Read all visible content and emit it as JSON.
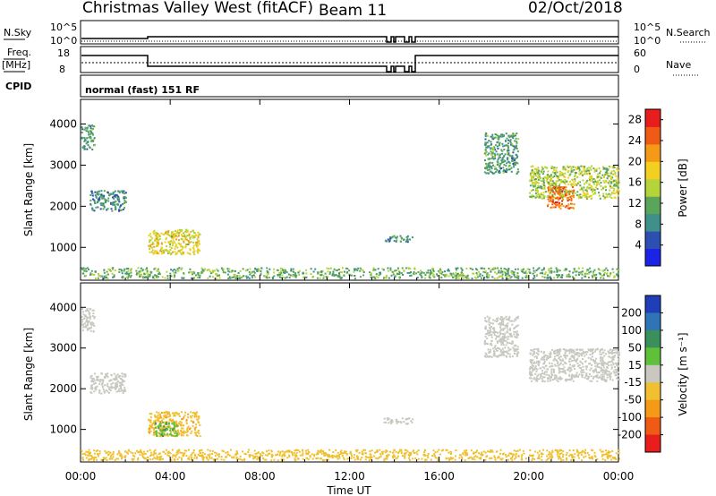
{
  "header": {
    "title": "Christmas Valley West (fitACF)",
    "beam": "Beam 11",
    "date": "02/Oct/2018"
  },
  "summary_panel": {
    "nsky_label": "N.Sky",
    "nsky_ticks": [
      "10^5",
      "10^0"
    ],
    "nsearch_label": "N.Search",
    "nsearch_ticks": [
      "10^5",
      "10^0"
    ],
    "freq_label": "Freq.",
    "freq_unit": "[MHz]",
    "freq_ticks": [
      "18",
      "8"
    ],
    "nave_label": "Nave",
    "nave_ticks": [
      "60",
      "0"
    ],
    "cpid_label": "CPID",
    "cpid_value": "normal (fast) 151 RF"
  },
  "colors": {
    "power_scale": [
      "#1b23e6",
      "#2b4fb2",
      "#3f8f8a",
      "#5aa55a",
      "#b5d43a",
      "#f2cf20",
      "#f59a16",
      "#ef5a14",
      "#e81d1d"
    ],
    "velocity_scale": [
      "#1f3fb8",
      "#2f74b5",
      "#3a8f5a",
      "#60c03a",
      "#c8c8c0",
      "#f0c030",
      "#f59a16",
      "#ef5a14",
      "#e81d1d"
    ]
  },
  "chart_data": [
    {
      "type": "heatmap",
      "name": "power",
      "xlabel": "Time UT",
      "ylabel": "Slant Range [km]",
      "xlim": [
        0,
        24
      ],
      "ylim": [
        200,
        4600
      ],
      "x_ticks": [
        "00:00",
        "04:00",
        "08:00",
        "12:00",
        "16:00",
        "20:00",
        "00:00"
      ],
      "y_ticks": [
        1000,
        2000,
        3000,
        4000
      ],
      "colorbar": {
        "label": "Power [dB]",
        "ticks": [
          4,
          8,
          12,
          16,
          20,
          24,
          28
        ],
        "range": [
          0,
          30
        ]
      },
      "regions": [
        {
          "t": [
            0.0,
            24.0
          ],
          "r": [
            260,
            520
          ],
          "level": 12
        },
        {
          "t": [
            3.0,
            5.3
          ],
          "r": [
            850,
            1450
          ],
          "level": 17
        },
        {
          "t": [
            0.0,
            0.6
          ],
          "r": [
            3400,
            4000
          ],
          "level": 10
        },
        {
          "t": [
            0.4,
            2.0
          ],
          "r": [
            1900,
            2400
          ],
          "level": 9
        },
        {
          "t": [
            18.0,
            19.5
          ],
          "r": [
            2800,
            3800
          ],
          "level": 10
        },
        {
          "t": [
            20.0,
            24.0
          ],
          "r": [
            2200,
            3000
          ],
          "level": 15
        },
        {
          "t": [
            20.8,
            22.0
          ],
          "r": [
            1950,
            2500
          ],
          "level": 24
        },
        {
          "t": [
            13.5,
            14.8
          ],
          "r": [
            1150,
            1300
          ],
          "level": 9
        }
      ]
    },
    {
      "type": "heatmap",
      "name": "velocity",
      "xlabel": "Time UT",
      "ylabel": "Slant Range [km]",
      "xlim": [
        0,
        24
      ],
      "ylim": [
        200,
        4600
      ],
      "x_ticks": [
        "00:00",
        "04:00",
        "08:00",
        "12:00",
        "16:00",
        "20:00",
        "00:00"
      ],
      "y_ticks": [
        1000,
        2000,
        3000,
        4000
      ],
      "colorbar": {
        "label": "Velocity [m s⁻¹]",
        "ticks": [
          200,
          100,
          50,
          15,
          -15,
          -50,
          -100,
          -200
        ]
      },
      "regions": [
        {
          "t": [
            0.0,
            24.0
          ],
          "r": [
            260,
            520
          ],
          "level": -30
        },
        {
          "t": [
            3.0,
            5.3
          ],
          "r": [
            850,
            1450
          ],
          "level": -40
        },
        {
          "t": [
            3.3,
            4.3
          ],
          "r": [
            850,
            1200
          ],
          "level": 40
        },
        {
          "t": [
            0.0,
            0.6
          ],
          "r": [
            3400,
            4000
          ],
          "level": 0
        },
        {
          "t": [
            0.4,
            2.0
          ],
          "r": [
            1900,
            2400
          ],
          "level": 0
        },
        {
          "t": [
            18.0,
            19.5
          ],
          "r": [
            2800,
            3800
          ],
          "level": 0
        },
        {
          "t": [
            20.0,
            24.0
          ],
          "r": [
            2200,
            3000
          ],
          "level": 0
        },
        {
          "t": [
            13.5,
            14.8
          ],
          "r": [
            1150,
            1300
          ],
          "level": 0
        }
      ]
    }
  ]
}
